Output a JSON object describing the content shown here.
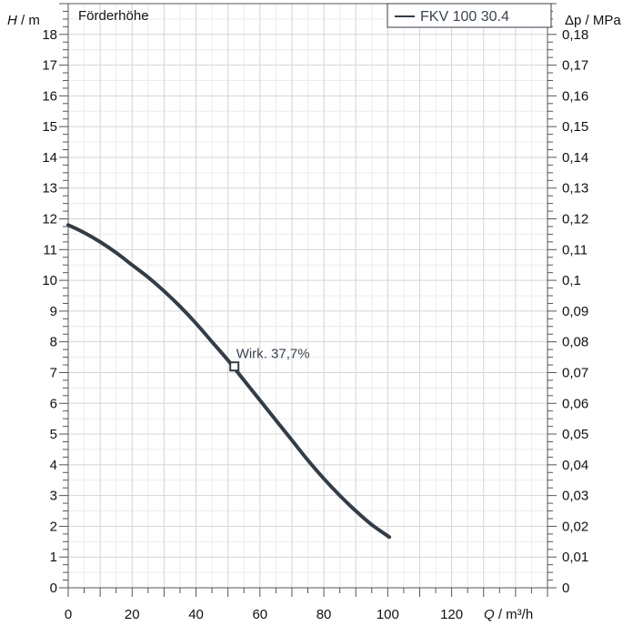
{
  "chart_data": {
    "type": "line",
    "title": "Förderhöhe",
    "xlabel": {
      "var": "Q",
      "unit": " / m³/h"
    },
    "ylabel": {
      "var": "H",
      "unit": " / m"
    },
    "y2label": {
      "var": "Δp",
      "unit": " / MPa"
    },
    "xlim": [
      0,
      150
    ],
    "ylim": [
      0,
      19
    ],
    "y2lim": [
      0,
      0.19
    ],
    "xticks": [
      0,
      20,
      40,
      60,
      80,
      100,
      120
    ],
    "yticks": [
      0,
      1,
      2,
      3,
      4,
      5,
      6,
      7,
      8,
      9,
      10,
      11,
      12,
      13,
      14,
      15,
      16,
      17,
      18
    ],
    "y2ticks": [
      "0",
      "0,01",
      "0,02",
      "0,03",
      "0,04",
      "0,05",
      "0,06",
      "0,07",
      "0,08",
      "0,09",
      "0,1",
      "0,11",
      "0,12",
      "0,13",
      "0,14",
      "0,15",
      "0,16",
      "0,17",
      "0,18"
    ],
    "grid": true,
    "legend": "top-right",
    "series": [
      {
        "name": "FKV 100 30.4",
        "color": "#333d48",
        "x": [
          0,
          5,
          10,
          15,
          20,
          25,
          30,
          35,
          40,
          45,
          50,
          55,
          60,
          65,
          70,
          75,
          80,
          85,
          90,
          95,
          100.5
        ],
        "y": [
          11.8,
          11.55,
          11.25,
          10.9,
          10.5,
          10.1,
          9.65,
          9.15,
          8.6,
          8.0,
          7.4,
          6.75,
          6.1,
          5.45,
          4.8,
          4.15,
          3.55,
          3.0,
          2.5,
          2.05,
          1.65
        ]
      }
    ],
    "annotations": [
      {
        "text": "Wirk.  37,7%",
        "x": 52,
        "y": 7.2,
        "marker": "square"
      }
    ]
  }
}
